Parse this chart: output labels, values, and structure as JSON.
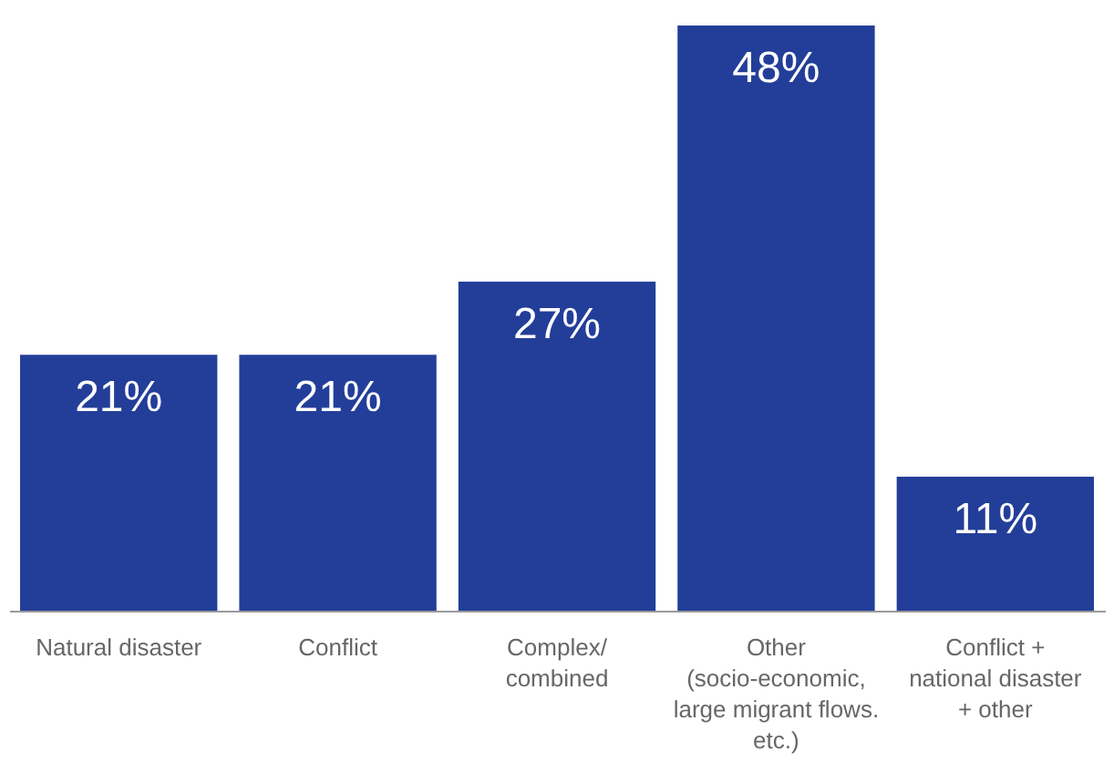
{
  "chart_data": {
    "type": "bar",
    "categories": [
      "Natural disaster",
      "Conflict",
      "Complex/\ncombined",
      "Other\n(socio-economic,\nlarge migrant flows.\netc.)",
      "Conflict +\nnational disaster\n+ other"
    ],
    "values": [
      21,
      21,
      27,
      48,
      11
    ],
    "color": "#233e99",
    "value_labels": [
      "21%",
      "21%",
      "27%",
      "48%",
      "11%"
    ],
    "grid": false
  }
}
